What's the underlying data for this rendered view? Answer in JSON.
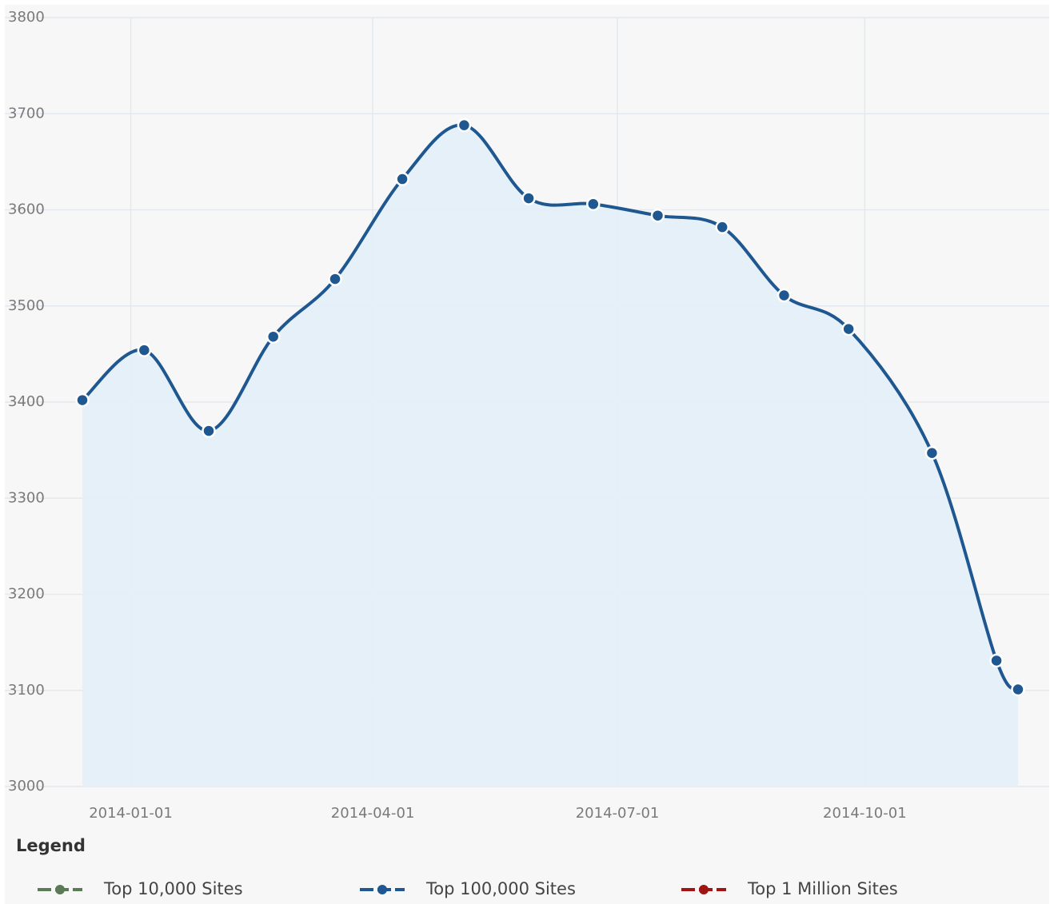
{
  "chart_data": {
    "type": "line",
    "x": [
      "2013-12-14",
      "2014-01-06",
      "2014-01-30",
      "2014-02-23",
      "2014-03-18",
      "2014-04-12",
      "2014-05-05",
      "2014-05-29",
      "2014-06-22",
      "2014-07-16",
      "2014-08-09",
      "2014-09-01",
      "2014-09-25",
      "2014-10-26",
      "2014-11-19",
      "2014-11-27"
    ],
    "series": [
      {
        "name": "Top 10,000 Sites",
        "color": "#5b7b57",
        "values": [
          null,
          null,
          null,
          null,
          null,
          null,
          null,
          null,
          null,
          null,
          null,
          null,
          null,
          null,
          null,
          null
        ]
      },
      {
        "name": "Top 100,000 Sites",
        "color": "#1f5790",
        "values": [
          3402,
          3454,
          3370,
          3468,
          3528,
          3632,
          3688,
          3612,
          3606,
          3594,
          3582,
          3511,
          3476,
          3347,
          3131,
          3101
        ]
      },
      {
        "name": "Top 1 Million Sites",
        "color": "#a01414",
        "values": [
          null,
          null,
          null,
          null,
          null,
          null,
          null,
          null,
          null,
          null,
          null,
          null,
          null,
          null,
          null,
          null
        ]
      }
    ],
    "xlim": [
      "2013-12-14",
      "2014-11-27"
    ],
    "xticks": [
      "2014-01-01",
      "2014-04-01",
      "2014-07-01",
      "2014-10-01"
    ],
    "ylim": [
      3000,
      3800
    ],
    "yticks": [
      3000,
      3100,
      3200,
      3300,
      3400,
      3500,
      3600,
      3700,
      3800
    ],
    "grid": true,
    "legend_title": "Legend",
    "legend_position": "bottom"
  }
}
